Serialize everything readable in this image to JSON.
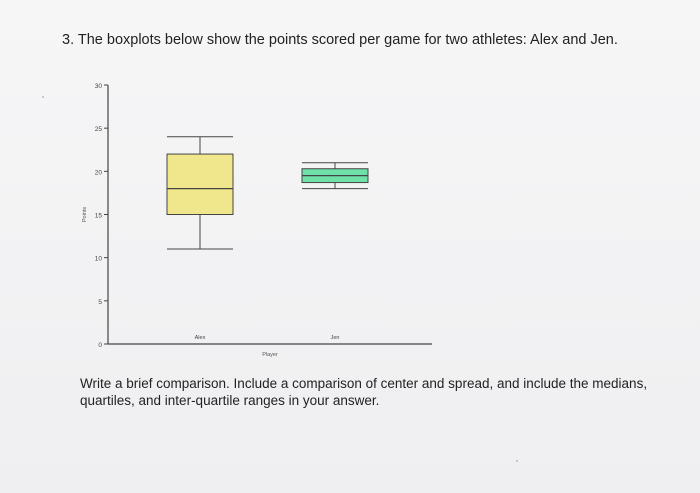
{
  "question": {
    "text": "3. The boxplots below show the points scored per game for two athletes: Alex and Jen."
  },
  "prompt": {
    "text": "Write a brief comparison. Include a comparison of center and spread, and include the medians, quartiles, and inter-quartile ranges in your answer."
  },
  "chart_data": {
    "type": "boxplot",
    "title": "",
    "xlabel": "Player",
    "ylabel": "Points",
    "ylim": [
      0,
      30
    ],
    "yticks": [
      0,
      5,
      10,
      15,
      20,
      25,
      30
    ],
    "grid": false,
    "categories": [
      "Alex",
      "Jen"
    ],
    "boxes": [
      {
        "category": "Alex",
        "min": 11,
        "q1": 15,
        "median": 18,
        "q3": 22,
        "max": 24,
        "color": "#f0e68c"
      },
      {
        "category": "Jen",
        "min": 18,
        "q1": 18.7,
        "median": 19.5,
        "q3": 20.3,
        "max": 21,
        "color": "#6ee0a8"
      }
    ]
  }
}
